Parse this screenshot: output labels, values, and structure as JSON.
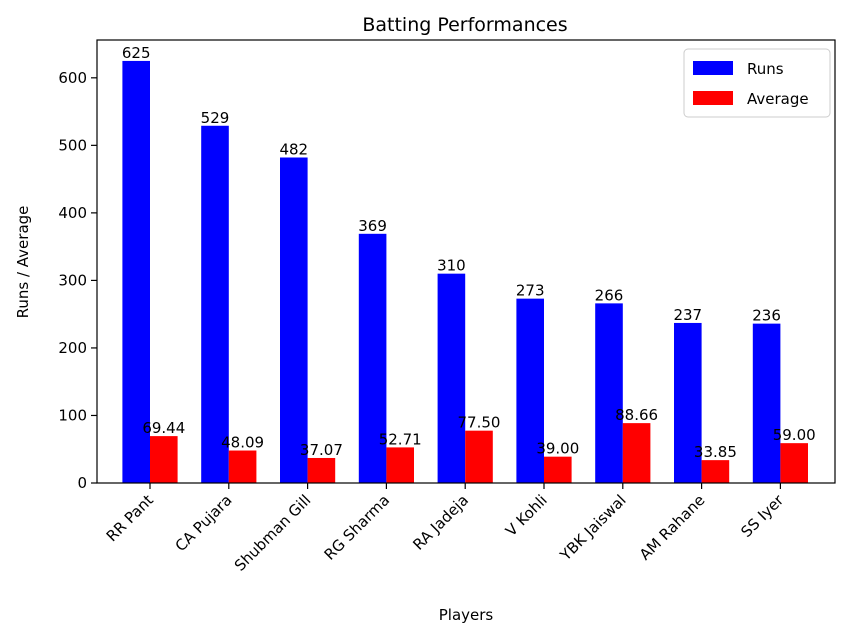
{
  "chart_data": {
    "type": "bar",
    "title": "Batting Performances",
    "xlabel": "Players",
    "ylabel": "Runs / Average",
    "categories": [
      "RR Pant",
      "CA Pujara",
      "Shubman Gill",
      "RG Sharma",
      "RA Jadeja",
      "V Kohli",
      "YBK Jaiswal",
      "AM Rahane",
      "SS Iyer"
    ],
    "series": [
      {
        "name": "Runs",
        "color": "#0000ff",
        "values": [
          625,
          529,
          482,
          369,
          310,
          273,
          266,
          237,
          236
        ],
        "labels": [
          "625",
          "529",
          "482",
          "369",
          "310",
          "273",
          "266",
          "237",
          "236"
        ]
      },
      {
        "name": "Average",
        "color": "#ff0000",
        "values": [
          69.44,
          48.09,
          37.07,
          52.71,
          77.5,
          39.0,
          88.66,
          33.85,
          59.0
        ],
        "labels": [
          "69.44",
          "48.09",
          "37.07",
          "52.71",
          "77.50",
          "39.00",
          "88.66",
          "33.85",
          "59.00"
        ]
      }
    ],
    "yticks": [
      0,
      100,
      200,
      300,
      400,
      500,
      600
    ],
    "ylim": [
      0,
      656
    ],
    "grid": false,
    "legend_position": "top-right"
  }
}
